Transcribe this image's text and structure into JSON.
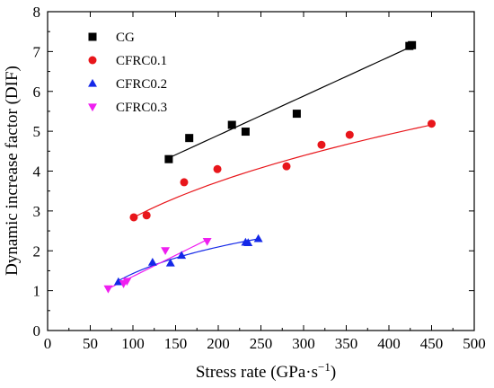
{
  "chart_data": {
    "type": "scatter",
    "xlabel": "Stress rate (GPa·s",
    "xlabel_sup": "−1",
    "xlabel_close": ")",
    "ylabel": "Dynamic increase factor (DIF)",
    "xlim": [
      0,
      500
    ],
    "ylim": [
      0,
      8
    ],
    "x_ticks": [
      0,
      50,
      100,
      150,
      200,
      250,
      300,
      350,
      400,
      450,
      500
    ],
    "y_ticks": [
      0,
      1,
      2,
      3,
      4,
      5,
      6,
      7,
      8
    ],
    "grid": false,
    "legend_position": "top-left",
    "series": [
      {
        "name": "CG",
        "color": "#000000",
        "marker": "square",
        "points": [
          [
            142,
            4.3
          ],
          [
            166,
            4.83
          ],
          [
            216,
            5.16
          ],
          [
            232,
            4.99
          ],
          [
            292,
            5.44
          ],
          [
            424,
            7.14
          ],
          [
            427,
            7.16
          ]
        ],
        "fit": {
          "type": "linear",
          "x_range": [
            142,
            427
          ],
          "y_range": [
            4.33,
            7.13
          ]
        }
      },
      {
        "name": "CFRC0.1",
        "color": "#e8161b",
        "marker": "circle",
        "points": [
          [
            101,
            2.84
          ],
          [
            116,
            2.89
          ],
          [
            160,
            3.72
          ],
          [
            199,
            4.05
          ],
          [
            280,
            4.12
          ],
          [
            321,
            4.66
          ],
          [
            354,
            4.91
          ],
          [
            450,
            5.19
          ]
        ],
        "fit": {
          "type": "power",
          "x_range": [
            101,
            450
          ],
          "y_range": [
            2.84,
            5.16
          ]
        }
      },
      {
        "name": "CFRC0.2",
        "color": "#1428e8",
        "marker": "triangle-up",
        "points": [
          [
            83,
            1.22
          ],
          [
            123,
            1.71
          ],
          [
            144,
            1.69
          ],
          [
            157,
            1.88
          ],
          [
            232,
            2.21
          ],
          [
            235,
            2.2
          ],
          [
            247,
            2.3
          ]
        ],
        "fit": {
          "type": "log",
          "x_range": [
            83,
            247
          ],
          "y_range": [
            1.25,
            2.3
          ]
        }
      },
      {
        "name": "CFRC0.3",
        "color": "#ef1ff0",
        "marker": "triangle-down",
        "points": [
          [
            71,
            1.05
          ],
          [
            89,
            1.18
          ],
          [
            93,
            1.24
          ],
          [
            138,
            2.01
          ],
          [
            187,
            2.24
          ]
        ],
        "fit": {
          "type": "linear",
          "x_range": [
            71,
            187
          ],
          "y_range": [
            1.05,
            2.28
          ]
        }
      }
    ]
  }
}
